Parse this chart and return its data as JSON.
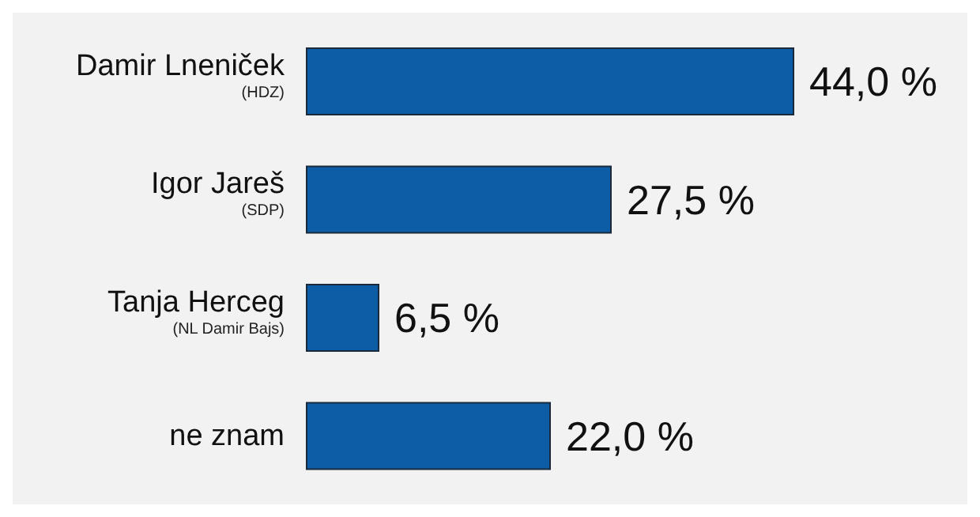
{
  "chart_data": {
    "type": "bar",
    "orientation": "horizontal",
    "categories": [
      "Damir Lneniček\n(HDZ)",
      "Igor Jareš\n(SDP)",
      "Tanja Herceg\n(NL Damir Bajs)",
      "ne znam"
    ],
    "values": [
      44.0,
      27.5,
      6.5,
      22.0
    ],
    "value_labels": [
      "44,0 %",
      "27,5 %",
      "6,5 %",
      "22,0 %"
    ],
    "color": "#0d5da6"
  }
}
